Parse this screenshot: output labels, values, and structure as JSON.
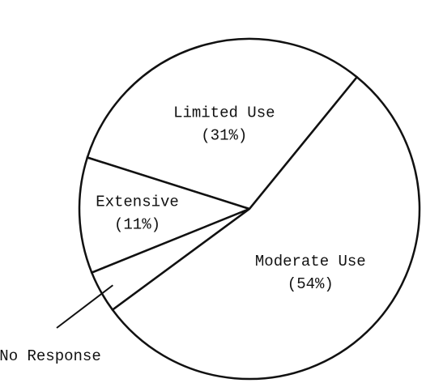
{
  "chart_data": {
    "type": "pie",
    "categories": [
      "Limited Use",
      "Extensive",
      "No Response",
      "Moderate Use"
    ],
    "values": [
      31,
      11,
      4,
      54
    ],
    "value_labels": [
      "(31%)",
      "(11%)",
      null,
      "(54%)"
    ],
    "color": "#ffffff"
  }
}
